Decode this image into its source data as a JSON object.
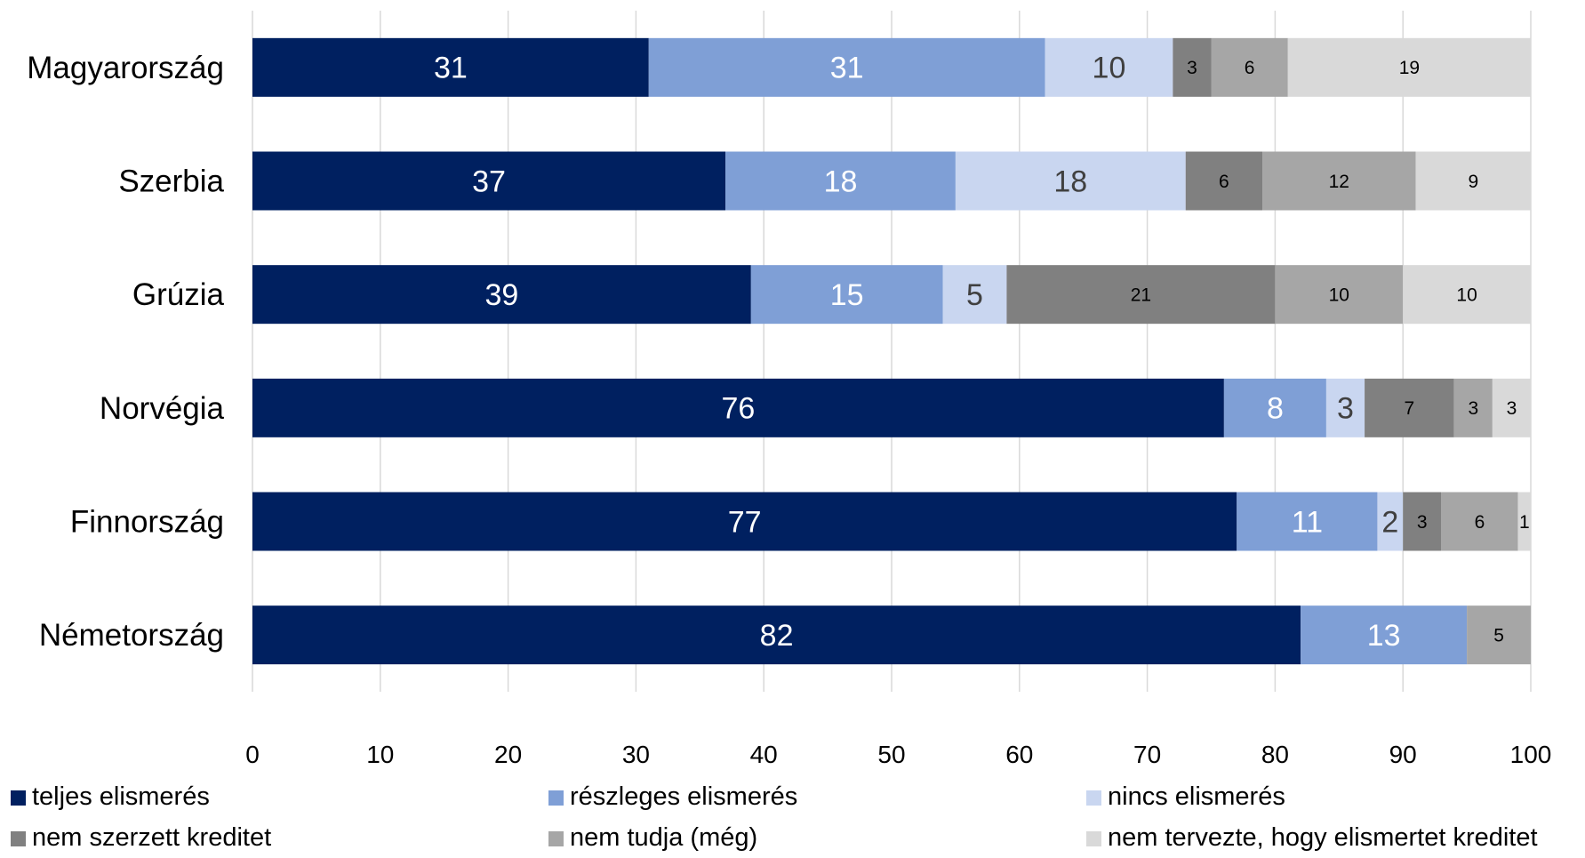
{
  "chart_data": {
    "type": "bar",
    "orientation": "horizontal",
    "stacked": true,
    "categories": [
      "Magyarország",
      "Szerbia",
      "Grúzia",
      "Norvégia",
      "Finnország",
      "Németország"
    ],
    "series": [
      {
        "name": "teljes elismerés",
        "color": "#002060",
        "values": [
          31,
          37,
          39,
          76,
          77,
          82
        ]
      },
      {
        "name": "részleges elismerés",
        "color": "#7f9fd6",
        "values": [
          31,
          18,
          15,
          8,
          11,
          13
        ]
      },
      {
        "name": "nincs elismerés",
        "color": "#c9d6f0",
        "values": [
          10,
          18,
          5,
          3,
          2,
          null
        ]
      },
      {
        "name": "nem szerzett kreditet",
        "color": "#808080",
        "values": [
          3,
          6,
          21,
          7,
          3,
          null
        ]
      },
      {
        "name": "nem tudja (még)",
        "color": "#a6a6a6",
        "values": [
          6,
          12,
          10,
          3,
          6,
          5
        ]
      },
      {
        "name": "nem tervezte, hogy elismertet kreditet",
        "color": "#d9d9d9",
        "values": [
          19,
          9,
          10,
          3,
          1,
          null
        ]
      }
    ],
    "xlim": [
      0,
      100
    ],
    "xticks": [
      0,
      10,
      20,
      30,
      40,
      50,
      60,
      70,
      80,
      90,
      100
    ],
    "grid": "vertical",
    "legend_position": "bottom"
  }
}
